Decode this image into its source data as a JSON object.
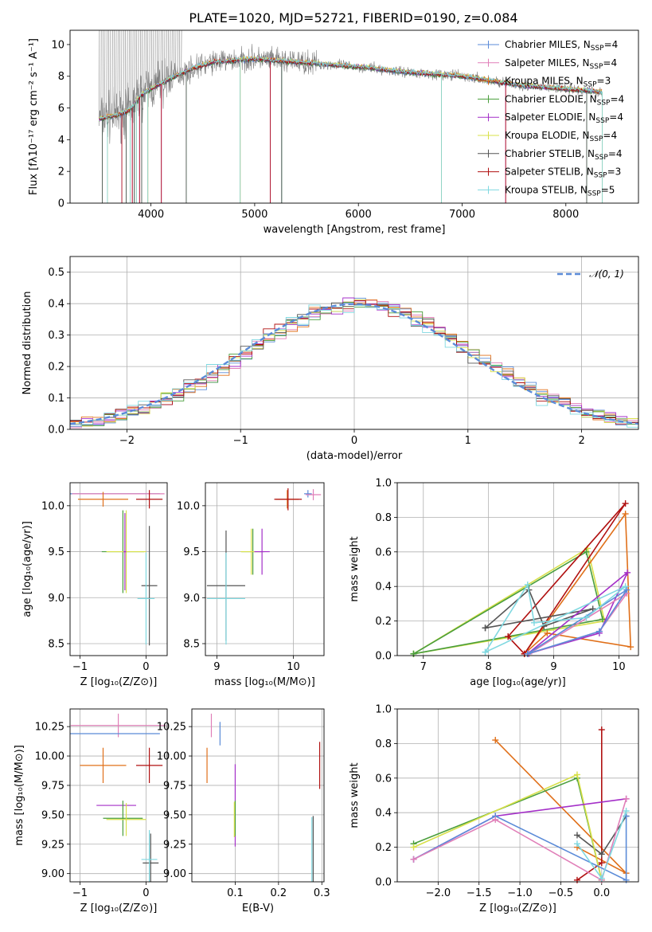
{
  "title": "PLATE=1020, MJD=52721, FIBERID=0190, z=0.084",
  "colors": {
    "chabrier_miles": "#5b8bd8",
    "salpeter_miles": "#e07fb8",
    "kroupa_miles": "#e0701a",
    "chabrier_elodie": "#4a9e3c",
    "salpeter_elodie": "#a42fc8",
    "kroupa_elodie": "#d8e04a",
    "chabrier_stelib": "#555555",
    "salpeter_stelib": "#b01010",
    "kroupa_stelib": "#7fd8e0",
    "data_gray": "#808080",
    "grid": "#b0b0b0",
    "normal_curve": "#5b8bd8"
  },
  "legend": [
    {
      "key": "chabrier_miles",
      "label": "Chabrier MILES, N",
      "sub": "SSP",
      "suffix": "=4"
    },
    {
      "key": "salpeter_miles",
      "label": "Salpeter MILES, N",
      "sub": "SSP",
      "suffix": "=4"
    },
    {
      "key": "kroupa_miles",
      "label": "Kroupa MILES, N",
      "sub": "SSP",
      "suffix": "=3"
    },
    {
      "key": "chabrier_elodie",
      "label": "Chabrier ELODIE, N",
      "sub": "SSP",
      "suffix": "=4"
    },
    {
      "key": "salpeter_elodie",
      "label": "Salpeter ELODIE, N",
      "sub": "SSP",
      "suffix": "=4"
    },
    {
      "key": "kroupa_elodie",
      "label": "Kroupa ELODIE, N",
      "sub": "SSP",
      "suffix": "=4"
    },
    {
      "key": "chabrier_stelib",
      "label": "Chabrier STELIB, N",
      "sub": "SSP",
      "suffix": "=4"
    },
    {
      "key": "salpeter_stelib",
      "label": "Salpeter STELIB, N",
      "sub": "SSP",
      "suffix": "=3"
    },
    {
      "key": "kroupa_stelib",
      "label": "Kroupa STELIB, N",
      "sub": "SSP",
      "suffix": "=5"
    }
  ],
  "chart_data": [
    {
      "id": "spectrum",
      "type": "line",
      "xlabel": "wavelength [Angstrom, rest frame]",
      "ylabel": "Flux [fλ10⁻¹⁷ erg cm⁻² s⁻¹ A⁻¹]",
      "xlim": [
        3220,
        8700
      ],
      "ylim": [
        0,
        10.9
      ],
      "xticks": [
        4000,
        5000,
        6000,
        7000,
        8000
      ],
      "yticks": [
        0,
        2,
        4,
        6,
        8,
        10
      ],
      "continuum": [
        [
          3500,
          5.3
        ],
        [
          3700,
          5.6
        ],
        [
          3800,
          5.9
        ],
        [
          3900,
          6.8
        ],
        [
          4000,
          7.2
        ],
        [
          4200,
          7.9
        ],
        [
          4400,
          8.5
        ],
        [
          4600,
          8.9
        ],
        [
          4800,
          9.0
        ],
        [
          5000,
          9.1
        ],
        [
          5200,
          9.0
        ],
        [
          5400,
          8.9
        ],
        [
          5600,
          8.8
        ],
        [
          5800,
          8.7
        ],
        [
          6000,
          8.6
        ],
        [
          6200,
          8.45
        ],
        [
          6400,
          8.3
        ],
        [
          6600,
          8.2
        ],
        [
          6800,
          8.1
        ],
        [
          7000,
          8.0
        ],
        [
          7200,
          7.8
        ],
        [
          7400,
          7.6
        ],
        [
          7600,
          7.4
        ],
        [
          7800,
          7.3
        ],
        [
          8000,
          7.2
        ],
        [
          8200,
          7.1
        ],
        [
          8350,
          7.0
        ]
      ],
      "deep_lines": [
        3530,
        3580,
        3720,
        3760,
        3800,
        3820,
        3840,
        3860,
        3890,
        3910,
        3970,
        4100,
        4340,
        4860,
        5150,
        5260,
        6800,
        7420,
        8200,
        8350
      ]
    },
    {
      "id": "residual_histogram",
      "type": "line",
      "xlabel": "(data-model)/error",
      "ylabel": "Normed distribution",
      "xlim": [
        -2.5,
        2.5
      ],
      "ylim": [
        0,
        0.55
      ],
      "xticks": [
        -2,
        -1,
        0,
        1,
        2
      ],
      "yticks": [
        0.0,
        0.1,
        0.2,
        0.3,
        0.4,
        0.5
      ],
      "normal_label": "𝒩(0, 1)"
    },
    {
      "id": "age_vs_Z",
      "type": "scatter",
      "xlabel": "Z [log₁₀(Z/Z⊙)]",
      "ylabel": "age  [log₁₀(age/yr)]",
      "xlim": [
        -1.15,
        0.32
      ],
      "ylim": [
        8.37,
        10.25
      ],
      "xticks": [
        -1,
        0
      ],
      "yticks": [
        8.5,
        9.0,
        9.5,
        10.0
      ],
      "points": [
        {
          "s": "chabrier_miles",
          "x": -0.47,
          "y": 10.13,
          "ex": 0.68,
          "ey": 0.0
        },
        {
          "s": "salpeter_miles",
          "x": -0.42,
          "y": 10.13,
          "ex": 0.7,
          "ey": 0.0
        },
        {
          "s": "kroupa_miles",
          "x": -0.65,
          "y": 10.07,
          "ex": 0.38,
          "ey": 0.08
        },
        {
          "s": "salpeter_stelib",
          "x": 0.05,
          "y": 10.07,
          "ex": 0.2,
          "ey": 0.1
        },
        {
          "s": "chabrier_elodie",
          "x": -0.35,
          "y": 9.5,
          "ex": 0.32,
          "ey": 0.45
        },
        {
          "s": "kroupa_elodie",
          "x": -0.3,
          "y": 9.5,
          "ex": 0.3,
          "ey": 0.45
        },
        {
          "s": "salpeter_elodie",
          "x": -0.32,
          "y": 9.5,
          "ex": 0.02,
          "ey": 0.42
        },
        {
          "s": "chabrier_stelib",
          "x": 0.05,
          "y": 9.13,
          "ex": 0.12,
          "ey": 0.65
        },
        {
          "s": "kroupa_stelib",
          "x": 0.0,
          "y": 8.99,
          "ex": 0.13,
          "ey": 0.5
        }
      ]
    },
    {
      "id": "age_vs_mass",
      "type": "scatter",
      "xlabel": "mass [log₁₀(M/M⊙)]",
      "xlim": [
        8.85,
        10.4
      ],
      "ylim": [
        8.37,
        10.25
      ],
      "xticks": [
        9,
        10
      ],
      "yticks": [
        8.5,
        9.0,
        9.5,
        10.0
      ],
      "points": [
        {
          "s": "chabrier_miles",
          "x": 10.19,
          "y": 10.13,
          "ex": 0.05,
          "ey": 0.04
        },
        {
          "s": "salpeter_miles",
          "x": 10.26,
          "y": 10.12,
          "ex": 0.1,
          "ey": 0.06
        },
        {
          "s": "kroupa_miles",
          "x": 9.92,
          "y": 10.07,
          "ex": 0.15,
          "ey": 0.1
        },
        {
          "s": "salpeter_stelib",
          "x": 9.93,
          "y": 10.07,
          "ex": 0.18,
          "ey": 0.12
        },
        {
          "s": "chabrier_elodie",
          "x": 9.47,
          "y": 9.5,
          "ex": 0.15,
          "ey": 0.25
        },
        {
          "s": "kroupa_elodie",
          "x": 9.45,
          "y": 9.5,
          "ex": 0.14,
          "ey": 0.25
        },
        {
          "s": "salpeter_elodie",
          "x": 9.59,
          "y": 9.5,
          "ex": 0.1,
          "ey": 0.25
        },
        {
          "s": "chabrier_stelib",
          "x": 9.12,
          "y": 9.13,
          "ex": 0.25,
          "ey": 0.6
        },
        {
          "s": "kroupa_stelib",
          "x": 9.12,
          "y": 8.99,
          "ex": 0.25,
          "ey": 0.5
        }
      ]
    },
    {
      "id": "weight_vs_age",
      "type": "line",
      "xlabel": "age  [log₁₀(age/yr)]",
      "ylabel": "mass weight",
      "xlim": [
        6.6,
        10.3
      ],
      "ylim": [
        0,
        1.0
      ],
      "xticks": [
        7,
        8,
        9,
        10
      ],
      "yticks": [
        0.0,
        0.2,
        0.4,
        0.6,
        0.8,
        1.0
      ],
      "series": [
        {
          "s": "kroupa_elodie",
          "x": [
            6.85,
            9.52,
            9.78,
            6.85
          ],
          "y": [
            0.01,
            0.62,
            0.2,
            0.01
          ]
        },
        {
          "s": "chabrier_elodie",
          "x": [
            6.85,
            9.5,
            9.75,
            6.85
          ],
          "y": [
            0.01,
            0.6,
            0.21,
            0.01
          ]
        },
        {
          "s": "kroupa_miles",
          "x": [
            8.55,
            10.1,
            10.18,
            8.9,
            8.55
          ],
          "y": [
            0.01,
            0.82,
            0.05,
            0.13,
            0.01
          ]
        },
        {
          "s": "salpeter_stelib",
          "x": [
            8.3,
            10.1,
            8.55,
            8.3
          ],
          "y": [
            0.11,
            0.88,
            0.01,
            0.11
          ]
        },
        {
          "s": "chabrier_stelib",
          "x": [
            7.95,
            8.62,
            8.85,
            9.6,
            7.95
          ],
          "y": [
            0.16,
            0.38,
            0.17,
            0.27,
            0.16
          ]
        },
        {
          "s": "salpeter_elodie",
          "x": [
            8.6,
            9.7,
            10.13,
            8.6
          ],
          "y": [
            0.01,
            0.13,
            0.48,
            0.01
          ]
        },
        {
          "s": "salpeter_miles",
          "x": [
            8.62,
            9.7,
            10.12,
            8.62
          ],
          "y": [
            0.01,
            0.14,
            0.36,
            0.01
          ]
        },
        {
          "s": "chabrier_miles",
          "x": [
            8.6,
            9.7,
            10.12,
            8.6
          ],
          "y": [
            0.01,
            0.14,
            0.38,
            0.01
          ]
        },
        {
          "s": "kroupa_stelib",
          "x": [
            7.95,
            8.6,
            8.7,
            9.5,
            10.1,
            7.95
          ],
          "y": [
            0.02,
            0.41,
            0.19,
            0.22,
            0.4,
            0.02
          ]
        }
      ]
    },
    {
      "id": "mass_vs_Z",
      "type": "scatter",
      "xlabel": "Z [log₁₀(Z/Z⊙)]",
      "ylabel": "mass [log₁₀(M/M⊙)]",
      "xlim": [
        -1.15,
        0.32
      ],
      "ylim": [
        8.93,
        10.4
      ],
      "xticks": [
        -1,
        0
      ],
      "yticks": [
        9.0,
        9.25,
        9.5,
        9.75,
        10.0,
        10.25
      ],
      "points": [
        {
          "s": "salpeter_miles",
          "x": -0.42,
          "y": 10.26,
          "ex": 0.72,
          "ey": 0.1
        },
        {
          "s": "chabrier_miles",
          "x": -0.47,
          "y": 10.19,
          "ex": 0.68,
          "ey": 0.0
        },
        {
          "s": "kroupa_miles",
          "x": -0.65,
          "y": 9.92,
          "ex": 0.35,
          "ey": 0.15
        },
        {
          "s": "salpeter_stelib",
          "x": 0.05,
          "y": 9.92,
          "ex": 0.2,
          "ey": 0.15
        },
        {
          "s": "salpeter_elodie",
          "x": -0.45,
          "y": 9.58,
          "ex": 0.3,
          "ey": 0.0
        },
        {
          "s": "chabrier_elodie",
          "x": -0.35,
          "y": 9.47,
          "ex": 0.3,
          "ey": 0.15
        },
        {
          "s": "kroupa_elodie",
          "x": -0.3,
          "y": 9.46,
          "ex": 0.3,
          "ey": 0.14
        },
        {
          "s": "chabrier_stelib",
          "x": 0.07,
          "y": 9.09,
          "ex": 0.12,
          "ey": 0.25
        },
        {
          "s": "kroupa_stelib",
          "x": 0.05,
          "y": 9.12,
          "ex": 0.12,
          "ey": 0.25
        }
      ]
    },
    {
      "id": "mass_vs_EBV",
      "type": "scatter",
      "xlabel": "E(B-V)",
      "xlim": [
        0.0,
        0.305
      ],
      "ylim": [
        8.93,
        10.4
      ],
      "xticks": [
        0.1,
        0.2,
        0.3
      ],
      "yticks": [
        9.0,
        9.25,
        9.5,
        9.75,
        10.0,
        10.25
      ],
      "points": [
        {
          "s": "salpeter_miles",
          "x": 0.045,
          "y": 10.26,
          "ex": 0.0,
          "ey": 0.1
        },
        {
          "s": "chabrier_miles",
          "x": 0.065,
          "y": 10.19,
          "ex": 0.0,
          "ey": 0.1
        },
        {
          "s": "kroupa_miles",
          "x": 0.035,
          "y": 9.92,
          "ex": 0.0,
          "ey": 0.15
        },
        {
          "s": "salpeter_stelib",
          "x": 0.295,
          "y": 9.92,
          "ex": 0.0,
          "ey": 0.2
        },
        {
          "s": "salpeter_elodie",
          "x": 0.1,
          "y": 9.58,
          "ex": 0.0,
          "ey": 0.35
        },
        {
          "s": "chabrier_elodie",
          "x": 0.1,
          "y": 9.47,
          "ex": 0.0,
          "ey": 0.15
        },
        {
          "s": "kroupa_elodie",
          "x": 0.098,
          "y": 9.46,
          "ex": 0.0,
          "ey": 0.15
        },
        {
          "s": "chabrier_stelib",
          "x": 0.28,
          "y": 9.09,
          "ex": 0.0,
          "ey": 0.4
        },
        {
          "s": "kroupa_stelib",
          "x": 0.277,
          "y": 9.12,
          "ex": 0.0,
          "ey": 0.36
        }
      ]
    },
    {
      "id": "weight_vs_Z",
      "type": "line",
      "xlabel": "Z [log₁₀(Z/Z⊙)]",
      "ylabel": "mass weight",
      "xlim": [
        -2.5,
        0.45
      ],
      "ylim": [
        0,
        1.0
      ],
      "xticks": [
        -2.0,
        -1.5,
        -1.0,
        -0.5,
        0.0
      ],
      "yticks": [
        0.0,
        0.2,
        0.4,
        0.6,
        0.8,
        1.0
      ],
      "series": [
        {
          "s": "kroupa_miles",
          "x": [
            -1.3,
            0.3,
            -0.3
          ],
          "y": [
            0.82,
            0.05,
            0.2
          ]
        },
        {
          "s": "salpeter_stelib",
          "x": [
            0.0,
            0.0,
            -0.3
          ],
          "y": [
            0.88,
            0.11,
            0.01
          ]
        },
        {
          "s": "chabrier_stelib",
          "x": [
            -0.3,
            0.0,
            0.3
          ],
          "y": [
            0.27,
            0.16,
            0.38
          ]
        },
        {
          "s": "chabrier_elodie",
          "x": [
            -2.3,
            -0.3,
            0.0
          ],
          "y": [
            0.22,
            0.6,
            0.01
          ]
        },
        {
          "s": "kroupa_elodie",
          "x": [
            -2.3,
            -0.3,
            0.0
          ],
          "y": [
            0.2,
            0.62,
            0.01
          ]
        },
        {
          "s": "salpeter_elodie",
          "x": [
            -2.3,
            -1.3,
            0.3
          ],
          "y": [
            0.13,
            0.38,
            0.48
          ]
        },
        {
          "s": "chabrier_miles",
          "x": [
            -2.3,
            -1.3,
            0.3,
            0.3
          ],
          "y": [
            0.13,
            0.38,
            0.01,
            0.38
          ]
        },
        {
          "s": "salpeter_miles",
          "x": [
            -2.3,
            -1.3,
            0.0,
            0.3
          ],
          "y": [
            0.13,
            0.36,
            0.01,
            0.48
          ]
        },
        {
          "s": "kroupa_stelib",
          "x": [
            -0.3,
            0.0,
            0.3
          ],
          "y": [
            0.22,
            0.02,
            0.41
          ]
        }
      ]
    }
  ]
}
